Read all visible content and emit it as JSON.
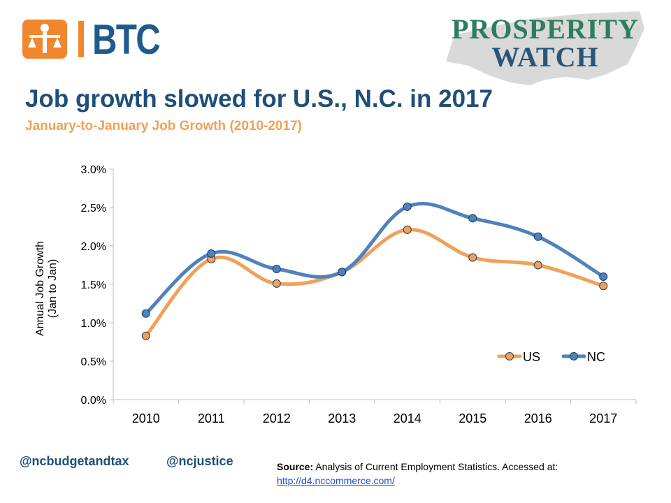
{
  "logos": {
    "btc_text": "BTC",
    "pw_line1": "PROSPERITY",
    "pw_line2": "WATCH"
  },
  "header": {
    "title": "Job growth slowed for U.S., N.C. in 2017",
    "subtitle": "January-to-January Job Growth (2010-2017)"
  },
  "chart_data": {
    "type": "line",
    "x": [
      "2010",
      "2011",
      "2012",
      "2013",
      "2014",
      "2015",
      "2016",
      "2017"
    ],
    "series": [
      {
        "name": "US",
        "values": [
          0.83,
          1.83,
          1.51,
          1.66,
          2.21,
          1.85,
          1.75,
          1.48
        ],
        "color": "#f0a05a"
      },
      {
        "name": "NC",
        "values": [
          1.12,
          1.9,
          1.7,
          1.66,
          2.51,
          2.36,
          2.12,
          1.6
        ],
        "color": "#4f81bd"
      }
    ],
    "ylabel_line1": "Annual Job Growth",
    "ylabel_line2": "(Jan to Jan)",
    "ylim": [
      0,
      3.0
    ],
    "yticks": [
      "0.0%",
      "0.5%",
      "1.0%",
      "1.5%",
      "2.0%",
      "2.5%",
      "3.0%"
    ],
    "grid": false,
    "legend": "inside-bottom-right"
  },
  "footer": {
    "handle1": "@ncbudgetandtax",
    "handle2": "@ncjustice",
    "source_label": "Source:",
    "source_text": "Analysis of Current Employment Statistics. Accessed at:",
    "source_link": "http://d4.nccommerce.com/"
  }
}
